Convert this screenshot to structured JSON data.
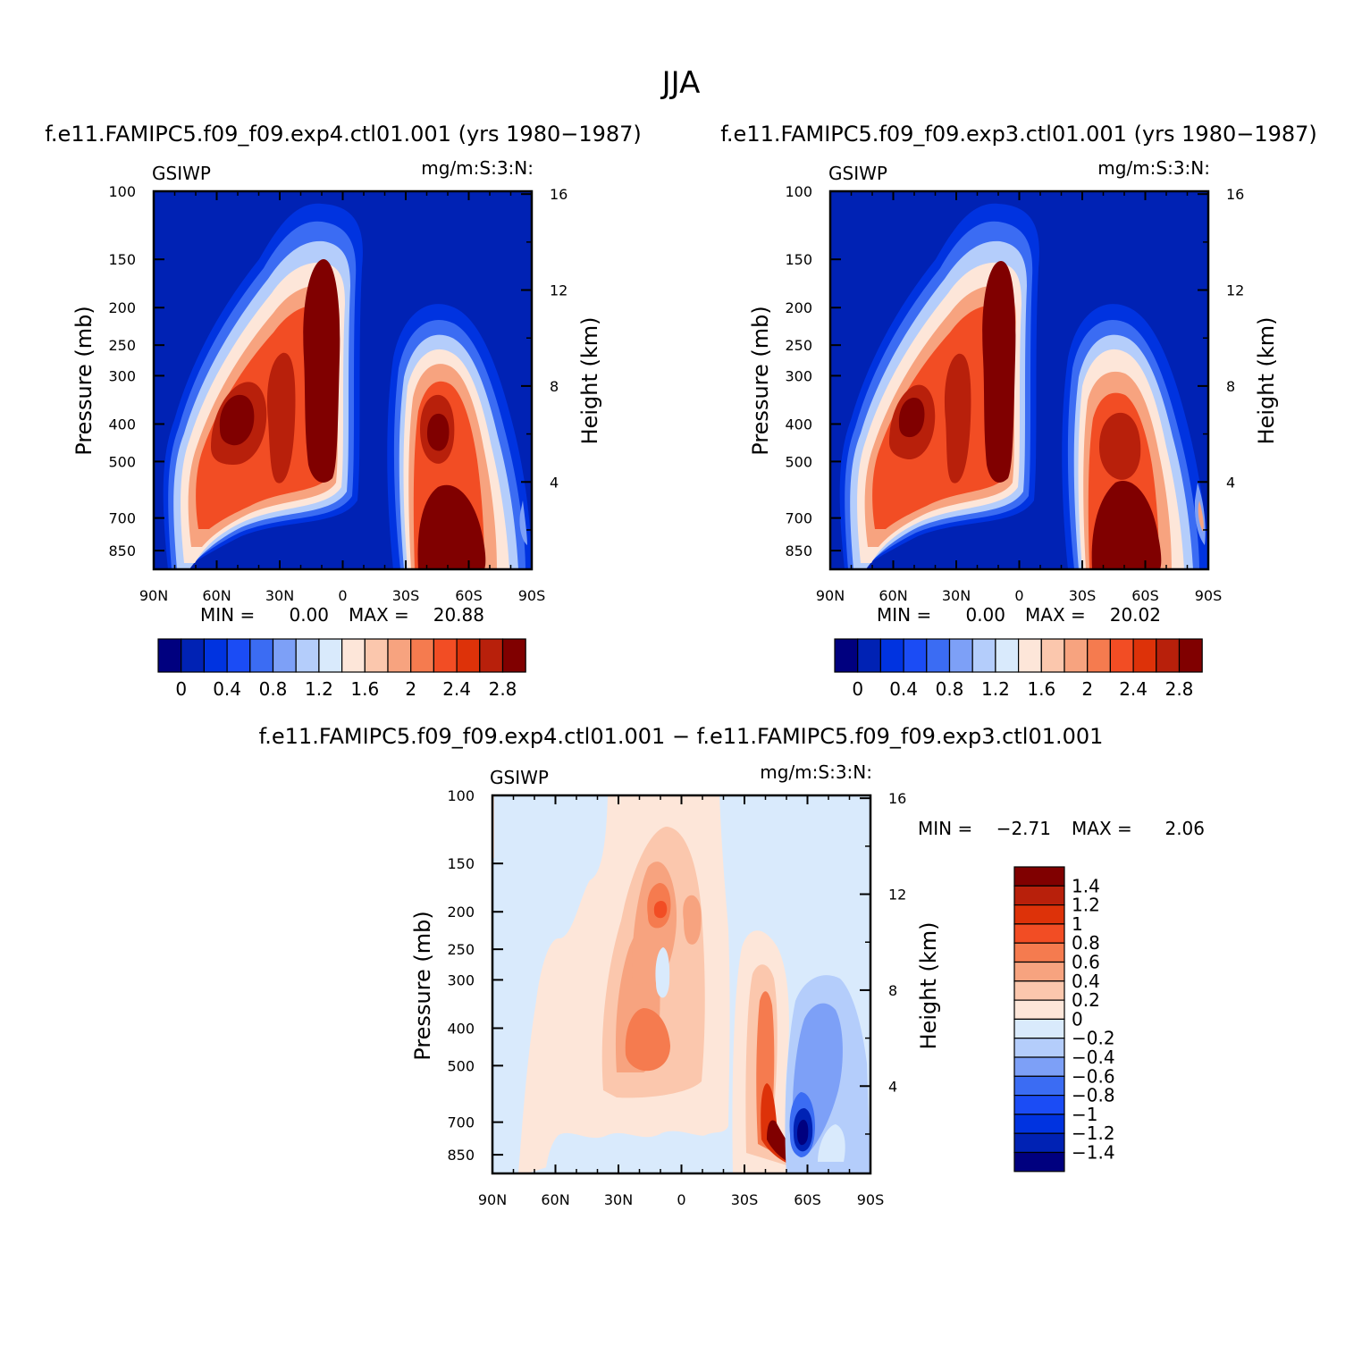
{
  "figure": {
    "title": "JJA",
    "units_label": "mg/m:S:3:N:",
    "variable": "GSIWP",
    "colors": {
      "base": [
        "#00007f",
        "#0022b4",
        "#0033e0",
        "#1b4cf5",
        "#3b6cf3",
        "#7da0f7",
        "#b4cdfb",
        "#d9eafc",
        "#fde6d9",
        "#fbc7ad",
        "#f7a37f",
        "#f57b4f",
        "#f24d24",
        "#dd3209",
        "#b8200b",
        "#800000"
      ],
      "diff": [
        "#00007f",
        "#0022b4",
        "#0033e0",
        "#1b4cf5",
        "#3b6cf3",
        "#7da0f7",
        "#b4cdfb",
        "#d9eafc",
        "#fde6d9",
        "#fbc7ad",
        "#f7a37f",
        "#f57b4f",
        "#f24d24",
        "#dd3209",
        "#b8200b",
        "#800000"
      ]
    }
  },
  "chart_data": [
    {
      "type": "heatmap",
      "panel": "left",
      "title": "f.e11.FAMIPC5.f09_f09.exp4.ctl01.001 (yrs 1980−1987)",
      "variable": "GSIWP",
      "units": "mg/m:S:3:N:",
      "ylabel": "Pressure (mb)",
      "y2label": "Height (km)",
      "x_ticks": [
        "90N",
        "60N",
        "30N",
        "0",
        "30S",
        "60S",
        "90S"
      ],
      "x_lat": [
        90,
        60,
        30,
        0,
        -30,
        -60,
        -90
      ],
      "y_ticks": [
        "100",
        "150",
        "200",
        "250",
        "300",
        "400",
        "500",
        "700",
        "850"
      ],
      "y_pressure": [
        100,
        150,
        200,
        250,
        300,
        400,
        500,
        700,
        850
      ],
      "y2_ticks": [
        "16",
        "12",
        "8",
        "4"
      ],
      "y2_km": [
        16,
        12,
        8,
        4
      ],
      "ylim_mb": [
        100,
        950
      ],
      "min_label": "MIN =",
      "min_value": "0.00",
      "max_label": "MAX =",
      "max_value": "20.88",
      "colorbar_labels": [
        "0",
        "0.4",
        "0.8",
        "1.2",
        "1.6",
        "2",
        "2.4",
        "2.8"
      ],
      "features": [
        {
          "lat": 50,
          "mb": 380,
          "value": 2.9
        },
        {
          "lat": 10,
          "mb": 300,
          "value": 3.0
        },
        {
          "lat": -45,
          "mb": 400,
          "value": 2.9
        },
        {
          "lat": -55,
          "mb": 800,
          "value": 3.0
        }
      ]
    },
    {
      "type": "heatmap",
      "panel": "right",
      "title": "f.e11.FAMIPC5.f09_f09.exp3.ctl01.001 (yrs 1980−1987)",
      "variable": "GSIWP",
      "units": "mg/m:S:3:N:",
      "ylabel": "Pressure (mb)",
      "y2label": "Height (km)",
      "x_ticks": [
        "90N",
        "60N",
        "30N",
        "0",
        "30S",
        "60S",
        "90S"
      ],
      "x_lat": [
        90,
        60,
        30,
        0,
        -30,
        -60,
        -90
      ],
      "y_ticks": [
        "100",
        "150",
        "200",
        "250",
        "300",
        "400",
        "500",
        "700",
        "850"
      ],
      "y_pressure": [
        100,
        150,
        200,
        250,
        300,
        400,
        500,
        700,
        850
      ],
      "y2_ticks": [
        "16",
        "12",
        "8",
        "4"
      ],
      "y2_km": [
        16,
        12,
        8,
        4
      ],
      "ylim_mb": [
        100,
        950
      ],
      "min_label": "MIN =",
      "min_value": "0.00",
      "max_label": "MAX =",
      "max_value": "20.02",
      "colorbar_labels": [
        "0",
        "0.4",
        "0.8",
        "1.2",
        "1.6",
        "2",
        "2.4",
        "2.8"
      ],
      "features": [
        {
          "lat": 52,
          "mb": 380,
          "value": 2.8
        },
        {
          "lat": 10,
          "mb": 300,
          "value": 3.0
        },
        {
          "lat": -45,
          "mb": 450,
          "value": 2.7
        },
        {
          "lat": -55,
          "mb": 800,
          "value": 3.0
        }
      ]
    },
    {
      "type": "heatmap",
      "panel": "diff",
      "title": "f.e11.FAMIPC5.f09_f09.exp4.ctl01.001 − f.e11.FAMIPC5.f09_f09.exp3.ctl01.001",
      "variable": "GSIWP",
      "units": "mg/m:S:3:N:",
      "ylabel": "Pressure (mb)",
      "y2label": "Height (km)",
      "x_ticks": [
        "90N",
        "60N",
        "30N",
        "0",
        "30S",
        "60S",
        "90S"
      ],
      "x_lat": [
        90,
        60,
        30,
        0,
        -30,
        -60,
        -90
      ],
      "y_ticks": [
        "100",
        "150",
        "200",
        "250",
        "300",
        "400",
        "500",
        "700",
        "850"
      ],
      "y_pressure": [
        100,
        150,
        200,
        250,
        300,
        400,
        500,
        700,
        850
      ],
      "y2_ticks": [
        "16",
        "12",
        "8",
        "4"
      ],
      "y2_km": [
        16,
        12,
        8,
        4
      ],
      "ylim_mb": [
        100,
        950
      ],
      "min_label": "MIN =",
      "min_value": "−2.71",
      "max_label": "MAX =",
      "max_value": "2.06",
      "colorbar_labels": [
        "1.4",
        "1.2",
        "1",
        "0.8",
        "0.6",
        "0.4",
        "0.2",
        "0",
        "−0.2",
        "−0.4",
        "−0.6",
        "−0.8",
        "−1",
        "−1.2",
        "−1.4"
      ],
      "features": [
        {
          "lat": 10,
          "mb": 200,
          "value": 1.0
        },
        {
          "lat": 10,
          "mb": 400,
          "value": 0.8
        },
        {
          "lat": -42,
          "mb": 780,
          "value": 1.5
        },
        {
          "lat": -58,
          "mb": 720,
          "value": -1.5
        },
        {
          "lat": -70,
          "mb": 450,
          "value": -0.6
        }
      ]
    }
  ]
}
